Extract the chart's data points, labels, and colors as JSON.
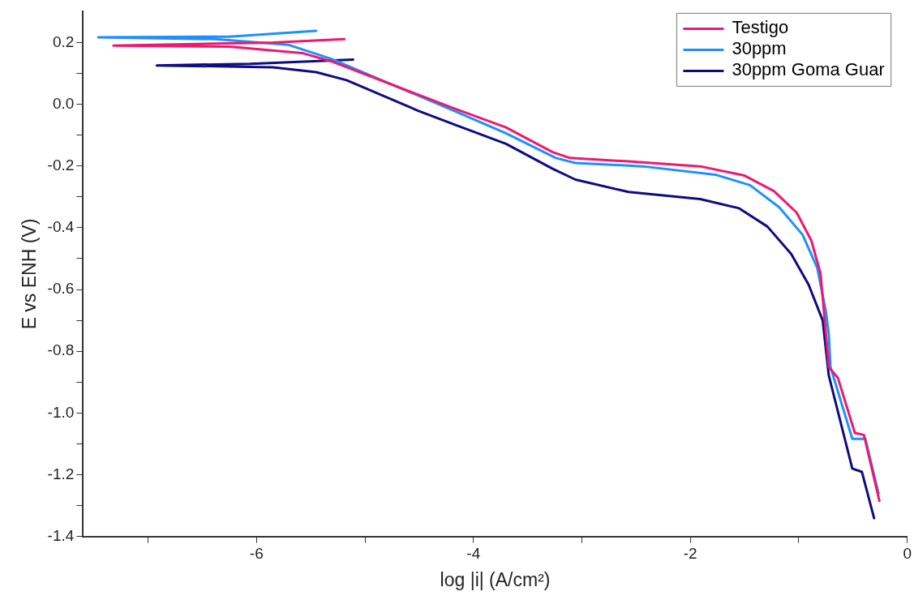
{
  "chart_data": {
    "type": "line",
    "xlabel": "log |i| (A/cm²)",
    "ylabel": "E vs ENH (V)",
    "xlim": [
      -7.6,
      0
    ],
    "ylim": [
      -1.4,
      0.3
    ],
    "xticks": [
      {
        "value": -7,
        "label": null
      },
      -6,
      {
        "value": -5,
        "label": null
      },
      -4,
      {
        "value": -3,
        "label": null
      },
      -2,
      {
        "value": -1,
        "label": null
      },
      0
    ],
    "yticks": [
      -1.4,
      {
        "value": -1.3,
        "label": null
      },
      -1.2,
      {
        "value": -1.1,
        "label": null
      },
      {
        "value": -1,
        "label": "-1.0"
      },
      {
        "value": -0.9,
        "label": null
      },
      -0.8,
      {
        "value": -0.7,
        "label": null
      },
      -0.6,
      {
        "value": -0.5,
        "label": null
      },
      -0.4,
      {
        "value": -0.3,
        "label": null
      },
      -0.2,
      {
        "value": -0.1,
        "label": null
      },
      {
        "value": 0,
        "label": "0.0"
      },
      {
        "value": 0.1,
        "label": null
      },
      0.2
    ],
    "grid": false,
    "legend": "top right",
    "series": [
      {
        "name": "Testigo",
        "color": "#f0186e",
        "x": [
          -5.19,
          -5.85,
          -7.32,
          -6.25,
          -5.58,
          -5.31,
          -4.18,
          -3.7,
          -3.27,
          -3.11,
          -2.57,
          -1.91,
          -1.5,
          -1.23,
          -1.02,
          -0.885,
          -0.8,
          -0.75,
          -0.724,
          -0.64,
          -0.483,
          -0.4,
          -0.257
        ],
        "values": [
          0.211,
          0.2,
          0.19,
          0.187,
          0.166,
          0.139,
          -0.013,
          -0.075,
          -0.155,
          -0.174,
          -0.185,
          -0.201,
          -0.231,
          -0.281,
          -0.351,
          -0.441,
          -0.548,
          -0.744,
          -0.851,
          -0.886,
          -1.065,
          -1.071,
          -1.285
        ]
      },
      {
        "name": "30ppm",
        "color": "#1e90ff",
        "x": [
          -5.45,
          -6.25,
          -7.46,
          -6.38,
          -5.71,
          -5.31,
          -4.18,
          -3.7,
          -3.24,
          -3.06,
          -2.44,
          -1.77,
          -1.45,
          -1.18,
          -0.965,
          -0.83,
          -0.75,
          -0.724,
          -0.708,
          -0.507,
          -0.386,
          -0.265
        ],
        "values": [
          0.238,
          0.219,
          0.217,
          0.211,
          0.193,
          0.147,
          -0.021,
          -0.094,
          -0.174,
          -0.19,
          -0.201,
          -0.228,
          -0.262,
          -0.334,
          -0.423,
          -0.53,
          -0.672,
          -0.744,
          -0.851,
          -1.084,
          -1.084,
          -1.261
        ]
      },
      {
        "name": "30ppm Goma Guar",
        "color": "#0d0d80",
        "x": [
          -5.11,
          -6.06,
          -6.92,
          -5.85,
          -5.45,
          -5.17,
          -4.51,
          -4.18,
          -3.7,
          -3.27,
          -3.06,
          -2.57,
          -1.91,
          -1.55,
          -1.29,
          -1.07,
          -0.91,
          -0.78,
          -0.724,
          -0.507,
          -0.418,
          -0.306
        ],
        "values": [
          0.145,
          0.131,
          0.126,
          0.12,
          0.104,
          0.078,
          -0.021,
          -0.065,
          -0.128,
          -0.209,
          -0.244,
          -0.284,
          -0.307,
          -0.337,
          -0.396,
          -0.485,
          -0.584,
          -0.7,
          -0.878,
          -1.18,
          -1.191,
          -1.341
        ]
      }
    ]
  }
}
